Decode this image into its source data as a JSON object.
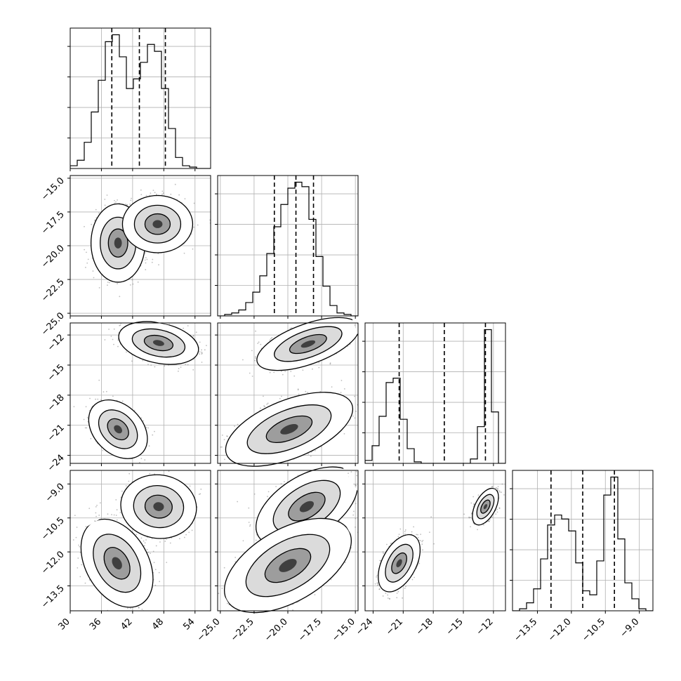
{
  "chart_data": {
    "type": "corner",
    "grid": true,
    "parameters": [
      {
        "range": [
          30,
          57
        ],
        "ticks": [
          30,
          36,
          42,
          48,
          54
        ],
        "tick_labels": [
          "30",
          "36",
          "42",
          "48",
          "54"
        ],
        "quantiles": [
          38.0,
          43.3,
          48.3
        ],
        "histogram": {
          "edges": [
            30.0,
            31.35,
            32.7,
            34.05,
            35.4,
            36.75,
            38.1,
            39.45,
            40.8,
            42.15,
            43.5,
            44.85,
            46.2,
            47.55,
            48.9,
            50.25,
            51.6,
            52.95,
            54.3,
            55.65,
            57.0
          ],
          "counts": [
            2,
            6,
            19,
            41,
            64,
            92,
            97,
            81,
            58,
            65,
            77,
            90,
            85,
            58,
            29,
            8,
            2,
            1,
            0,
            0
          ]
        }
      },
      {
        "range": [
          -25.2,
          -14.8
        ],
        "ticks": [
          -25.0,
          -22.5,
          -20.0,
          -17.5,
          -15.0
        ],
        "tick_labels": [
          "−25.0",
          "−22.5",
          "−20.0",
          "−17.5",
          "−15.0"
        ],
        "quantiles": [
          -21.0,
          -19.4,
          -18.1
        ],
        "histogram": {
          "edges": [
            -25.2,
            -24.68,
            -24.16,
            -23.64,
            -23.12,
            -22.6,
            -22.08,
            -21.56,
            -21.04,
            -20.52,
            -20.0,
            -19.48,
            -18.96,
            -18.44,
            -17.92,
            -17.4,
            -16.88,
            -16.36,
            -15.84,
            -15.32,
            -14.8
          ],
          "counts": [
            0,
            1,
            2,
            4,
            9,
            16,
            27,
            42,
            60,
            75,
            86,
            90,
            87,
            65,
            40,
            20,
            7,
            2,
            1,
            0
          ]
        }
      },
      {
        "range": [
          -24.8,
          -10.8
        ],
        "ticks": [
          -24,
          -21,
          -18,
          -15,
          -12
        ],
        "tick_labels": [
          "−24",
          "−21",
          "−18",
          "−15",
          "−12"
        ],
        "quantiles": [
          -21.4,
          -16.9,
          -12.8
        ],
        "histogram": {
          "edges": [
            -24.8,
            -24.1,
            -23.4,
            -22.7,
            -22.0,
            -21.3,
            -20.6,
            -19.9,
            -19.2,
            -18.5,
            -17.8,
            -17.1,
            -16.4,
            -15.7,
            -15.0,
            -14.3,
            -13.6,
            -12.9,
            -12.2,
            -11.5,
            -10.8
          ],
          "counts": [
            2,
            12,
            32,
            55,
            58,
            30,
            10,
            1,
            0,
            0,
            0,
            0,
            0,
            0,
            0,
            3,
            25,
            91,
            35,
            0
          ]
        }
      },
      {
        "range": [
          -14.6,
          -8.4
        ],
        "ticks": [
          -13.5,
          -12.0,
          -10.5,
          -9.0
        ],
        "tick_labels": [
          "−13.5",
          "−12.0",
          "−10.5",
          "−9.0"
        ],
        "quantiles": [
          -12.9,
          -11.5,
          -10.1
        ],
        "histogram": {
          "edges": [
            -14.6,
            -14.29,
            -13.98,
            -13.67,
            -13.36,
            -13.05,
            -12.74,
            -12.43,
            -12.12,
            -11.81,
            -11.5,
            -11.19,
            -10.88,
            -10.57,
            -10.26,
            -9.95,
            -9.64,
            -9.33,
            -9.02,
            -8.71,
            -8.4
          ],
          "counts": [
            0,
            1,
            4,
            11,
            26,
            43,
            48,
            46,
            40,
            24,
            10,
            8,
            25,
            58,
            67,
            36,
            14,
            6,
            1,
            0
          ]
        }
      }
    ],
    "modes": [
      {
        "weight": 0.5,
        "mean": [
          39.0,
          -19.8,
          -21.3,
          -12.5
        ],
        "sd": [
          2.4,
          1.25,
          0.9,
          0.55
        ]
      },
      {
        "weight": 0.5,
        "mean": [
          46.8,
          -18.4,
          -12.8,
          -10.0
        ],
        "sd": [
          2.4,
          1.1,
          0.55,
          0.45
        ]
      }
    ],
    "panel_shapes": {
      "0-1": [
        {
          "cx": 39.2,
          "cy": -19.8,
          "rx": 5.2,
          "ry": 2.9,
          "angle": 90
        },
        {
          "cx": 46.8,
          "cy": -18.4,
          "rx": 5.5,
          "ry": 2.6,
          "angle": 0
        }
      ],
      "0-2": [
        {
          "cx": 47.0,
          "cy": -12.8,
          "rx": 7.8,
          "ry": 2.0,
          "angle": -12
        },
        {
          "cx": 39.2,
          "cy": -21.4,
          "rx": 6.5,
          "ry": 2.4,
          "angle": -45
        }
      ],
      "0-3": [
        {
          "cx": 47.0,
          "cy": -10.0,
          "rx": 7.3,
          "ry": 1.4,
          "angle": -8
        },
        {
          "cx": 39.0,
          "cy": -12.5,
          "rx": 6.0,
          "ry": 2.1,
          "angle": -60
        }
      ],
      "1-2": [
        {
          "cx": -18.5,
          "cy": -12.9,
          "rx": 4.0,
          "ry": 2.0,
          "angle": 20
        },
        {
          "cx": -19.9,
          "cy": -21.4,
          "rx": 5.0,
          "ry": 2.9,
          "angle": 22
        }
      ],
      "1-3": [
        {
          "cx": -18.6,
          "cy": -10.0,
          "rx": 4.2,
          "ry": 1.35,
          "angle": 32
        },
        {
          "cx": -20.0,
          "cy": -12.6,
          "rx": 5.2,
          "ry": 1.6,
          "angle": 30
        }
      ],
      "2-3": [
        {
          "cx": -12.8,
          "cy": -10.0,
          "rx": 2.0,
          "ry": 0.45,
          "angle": 62
        },
        {
          "cx": -21.4,
          "cy": -12.5,
          "rx": 3.1,
          "ry": 0.75,
          "angle": 62
        }
      ]
    },
    "contour_levels": [
      1.0,
      1.5,
      2.1
    ]
  }
}
